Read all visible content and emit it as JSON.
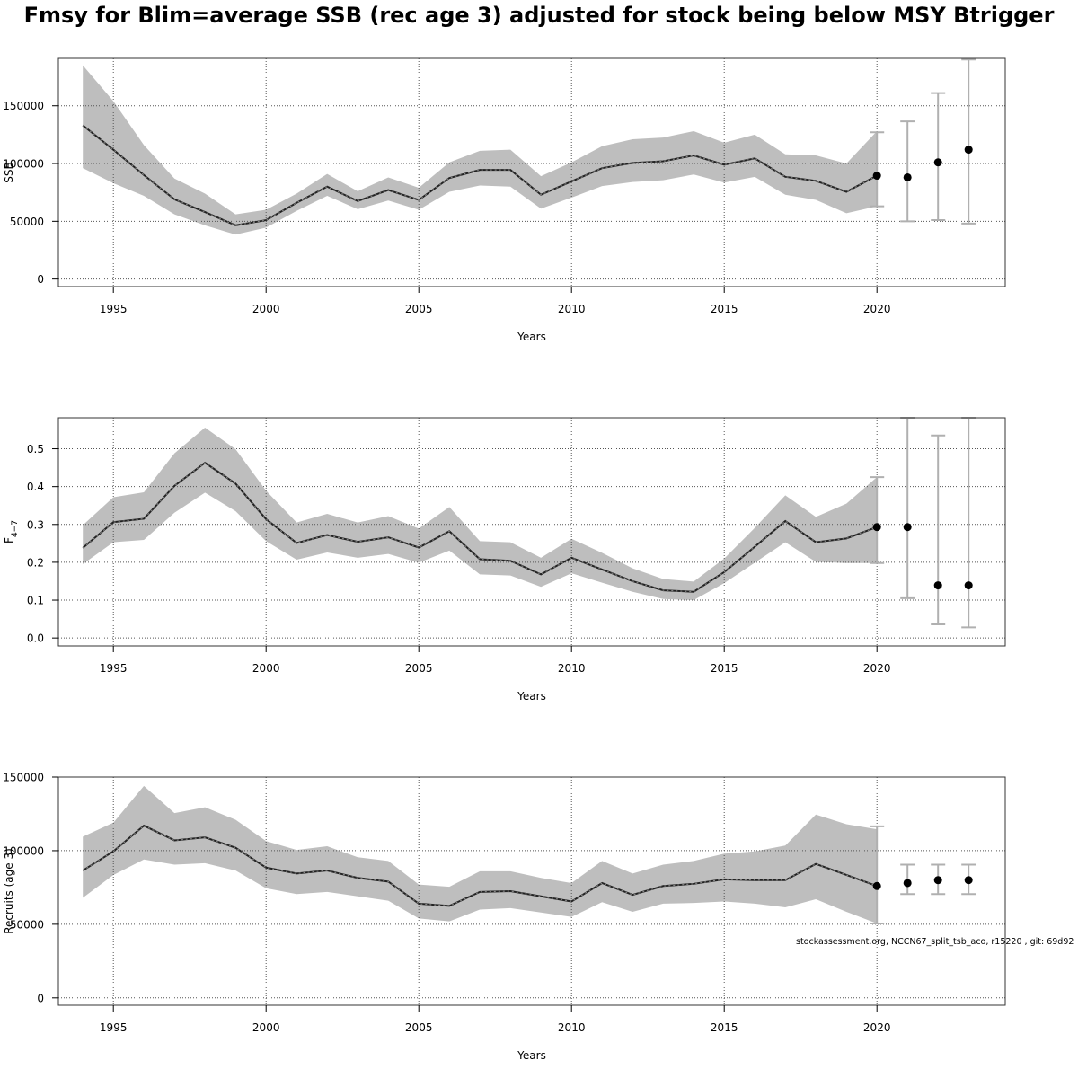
{
  "title": "Fmsy for Blim=average SSB (rec age 3) adjusted for stock being below MSY Btrigger",
  "footer_note": "stockassessment.org, NCCN67_split_tsb_aco, r15220 , git: 69d92",
  "colors": {
    "band": "#bebebe",
    "line": "#222222",
    "point": "#000000",
    "errorbar": "#b0b0b0",
    "grid": "#555555"
  },
  "chart_data": [
    {
      "type": "line",
      "xlabel": "Years",
      "ylabel": "SSB",
      "xlim": [
        1993.2,
        2024.2
      ],
      "ylim": [
        -6500,
        191000
      ],
      "x_ticks": [
        1995,
        2000,
        2005,
        2010,
        2015,
        2020
      ],
      "y_ticks": [
        0,
        50000,
        100000,
        150000
      ],
      "grid": true,
      "x": [
        1994,
        1995,
        1996,
        1997,
        1998,
        1999,
        2000,
        2001,
        2002,
        2003,
        2004,
        2005,
        2006,
        2007,
        2008,
        2009,
        2010,
        2011,
        2012,
        2013,
        2014,
        2015,
        2016,
        2017,
        2018,
        2019,
        2020
      ],
      "estimate": [
        133000,
        112000,
        90000,
        69000,
        58000,
        46500,
        51000,
        66000,
        80000,
        67500,
        77000,
        68500,
        87500,
        94500,
        94500,
        73000,
        84500,
        96000,
        100500,
        102000,
        107000,
        99000,
        104500,
        88500,
        85000,
        75500,
        89500
      ],
      "upper": [
        185000,
        154000,
        116000,
        87000,
        74000,
        56000,
        60000,
        74000,
        91000,
        76000,
        88000,
        79000,
        101000,
        111000,
        112000,
        89000,
        101000,
        115000,
        121000,
        122500,
        128000,
        118000,
        125000,
        108000,
        107000,
        100000,
        128000
      ],
      "lower": [
        96000,
        83000,
        72000,
        56000,
        46500,
        38500,
        44500,
        59000,
        72000,
        60500,
        68000,
        60000,
        75500,
        81000,
        80000,
        61000,
        70500,
        80500,
        84000,
        85500,
        90500,
        83500,
        88500,
        73000,
        68500,
        57000,
        63000
      ],
      "forecast": [
        {
          "x": 2020,
          "y": 89500,
          "low": 63000,
          "high": 127000
        },
        {
          "x": 2021,
          "y": 88000,
          "low": 50000,
          "high": 136500
        },
        {
          "x": 2022,
          "y": 101000,
          "low": 51000,
          "high": 161000
        },
        {
          "x": 2023,
          "y": 112000,
          "low": 48000,
          "high": 190000
        }
      ]
    },
    {
      "type": "line",
      "xlabel": "Years",
      "ylabel": "F",
      "ylabel_sub": "4−7",
      "xlim": [
        1993.2,
        2024.2
      ],
      "ylim": [
        -0.021,
        0.582
      ],
      "x_ticks": [
        1995,
        2000,
        2005,
        2010,
        2015,
        2020
      ],
      "y_ticks": [
        0.0,
        0.1,
        0.2,
        0.3,
        0.4,
        0.5
      ],
      "y_tick_labels": [
        "0.0",
        "0.1",
        "0.2",
        "0.3",
        "0.4",
        "0.5"
      ],
      "grid": true,
      "x": [
        1994,
        1995,
        1996,
        1997,
        1998,
        1999,
        2000,
        2001,
        2002,
        2003,
        2004,
        2005,
        2006,
        2007,
        2008,
        2009,
        2010,
        2011,
        2012,
        2013,
        2014,
        2015,
        2016,
        2017,
        2018,
        2019,
        2020
      ],
      "estimate": [
        0.238,
        0.306,
        0.315,
        0.402,
        0.463,
        0.408,
        0.314,
        0.251,
        0.272,
        0.254,
        0.266,
        0.239,
        0.282,
        0.208,
        0.204,
        0.168,
        0.212,
        0.181,
        0.15,
        0.126,
        0.122,
        0.174,
        0.241,
        0.309,
        0.253,
        0.263,
        0.293
      ],
      "upper": [
        0.298,
        0.372,
        0.385,
        0.488,
        0.556,
        0.499,
        0.389,
        0.305,
        0.328,
        0.305,
        0.322,
        0.289,
        0.346,
        0.256,
        0.253,
        0.212,
        0.262,
        0.225,
        0.184,
        0.156,
        0.149,
        0.21,
        0.291,
        0.377,
        0.32,
        0.355,
        0.425
      ],
      "lower": [
        0.195,
        0.253,
        0.259,
        0.331,
        0.384,
        0.335,
        0.256,
        0.207,
        0.226,
        0.212,
        0.222,
        0.199,
        0.231,
        0.168,
        0.165,
        0.135,
        0.171,
        0.146,
        0.122,
        0.103,
        0.1,
        0.145,
        0.199,
        0.253,
        0.201,
        0.198,
        0.198
      ],
      "forecast": [
        {
          "x": 2020,
          "y": 0.293,
          "low": 0.198,
          "high": 0.425
        },
        {
          "x": 2021,
          "y": 0.293,
          "low": 0.105,
          "high": 0.582
        },
        {
          "x": 2022,
          "y": 0.139,
          "low": 0.036,
          "high": 0.535
        },
        {
          "x": 2023,
          "y": 0.139,
          "low": 0.028,
          "high": 0.582
        }
      ]
    },
    {
      "type": "line",
      "xlabel": "Years",
      "ylabel": "Recruits (age 3)",
      "xlim": [
        1993.2,
        2024.2
      ],
      "ylim": [
        -5000,
        150000
      ],
      "x_ticks": [
        1995,
        2000,
        2005,
        2010,
        2015,
        2020
      ],
      "y_ticks": [
        0,
        50000,
        100000,
        150000
      ],
      "grid": true,
      "x": [
        1994,
        1995,
        1996,
        1997,
        1998,
        1999,
        2000,
        2001,
        2002,
        2003,
        2004,
        2005,
        2006,
        2007,
        2008,
        2009,
        2010,
        2011,
        2012,
        2013,
        2014,
        2015,
        2016,
        2017,
        2018,
        2019,
        2020
      ],
      "estimate": [
        86500,
        99500,
        117000,
        107000,
        109000,
        102000,
        88500,
        84500,
        86500,
        81500,
        79000,
        64000,
        62500,
        72000,
        72500,
        69000,
        65500,
        78000,
        70000,
        76000,
        77500,
        80500,
        80000,
        80000,
        91000,
        83500,
        76000
      ],
      "upper": [
        109500,
        119000,
        144000,
        125500,
        129500,
        121000,
        106500,
        100500,
        103000,
        95500,
        93000,
        77000,
        75500,
        86000,
        86000,
        81500,
        78000,
        93000,
        84500,
        90500,
        93000,
        98000,
        99500,
        103500,
        124500,
        118000,
        114500
      ],
      "lower": [
        68000,
        83500,
        94000,
        90500,
        91500,
        86500,
        74500,
        70500,
        72000,
        69000,
        66000,
        54000,
        52000,
        60000,
        61000,
        58000,
        55000,
        65000,
        58500,
        64000,
        64500,
        65500,
        64000,
        61500,
        67000,
        58500,
        50500
      ],
      "forecast": [
        {
          "x": 2020,
          "y": 76000,
          "low": 50500,
          "high": 116500
        },
        {
          "x": 2021,
          "y": 78000,
          "low": 70500,
          "high": 90500
        },
        {
          "x": 2022,
          "y": 80000,
          "low": 70500,
          "high": 90500
        },
        {
          "x": 2023,
          "y": 80000,
          "low": 70500,
          "high": 90500
        }
      ]
    }
  ]
}
